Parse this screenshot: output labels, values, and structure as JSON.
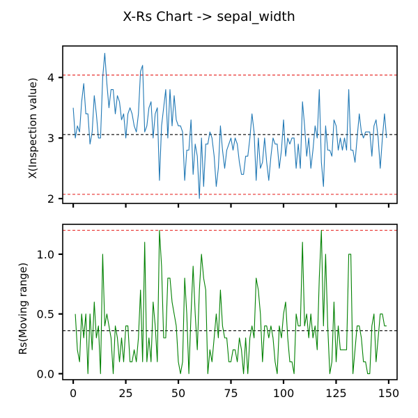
{
  "chart_data": {
    "type": "line",
    "title": "X-Rs Chart -> sepal_width",
    "colors": {
      "x_series": "#1f77b4",
      "rs_series": "#008000",
      "control_limit": "#e8312f",
      "center_line": "#000000"
    },
    "panels": [
      {
        "name": "x",
        "ylabel": "X(Inspection value)",
        "ylim": [
          1.92,
          4.52
        ],
        "yticks": [
          2,
          3,
          4
        ],
        "ucl": 4.04,
        "cl": 3.057,
        "lcl": 2.07,
        "show_x_tick_labels": false,
        "values": [
          3.5,
          3.0,
          3.2,
          3.1,
          3.6,
          3.9,
          3.4,
          3.4,
          2.9,
          3.1,
          3.7,
          3.4,
          3.0,
          3.0,
          4.0,
          4.4,
          3.9,
          3.5,
          3.8,
          3.8,
          3.4,
          3.7,
          3.6,
          3.3,
          3.4,
          3.0,
          3.4,
          3.5,
          3.4,
          3.2,
          3.1,
          3.4,
          4.1,
          4.2,
          3.1,
          3.2,
          3.5,
          3.6,
          3.0,
          3.4,
          3.5,
          2.3,
          3.2,
          3.5,
          3.8,
          3.0,
          3.8,
          3.2,
          3.7,
          3.3,
          3.2,
          3.2,
          3.1,
          2.3,
          2.8,
          2.8,
          3.3,
          2.4,
          2.9,
          2.7,
          2.0,
          3.0,
          2.2,
          2.9,
          2.9,
          3.1,
          3.0,
          2.7,
          2.2,
          2.5,
          3.2,
          2.8,
          2.5,
          2.8,
          2.9,
          3.0,
          2.8,
          3.0,
          2.9,
          2.6,
          2.4,
          2.4,
          2.7,
          2.7,
          3.0,
          3.4,
          3.1,
          2.3,
          3.0,
          2.5,
          2.6,
          3.0,
          2.6,
          2.3,
          2.7,
          3.0,
          2.9,
          2.9,
          2.5,
          2.8,
          3.3,
          2.7,
          3.0,
          2.9,
          3.0,
          3.0,
          2.5,
          2.9,
          2.5,
          3.6,
          3.2,
          2.7,
          3.0,
          2.5,
          2.8,
          3.2,
          3.0,
          3.8,
          2.6,
          2.2,
          3.2,
          2.8,
          2.8,
          2.7,
          3.3,
          3.2,
          2.8,
          3.0,
          2.8,
          3.0,
          2.8,
          3.8,
          2.8,
          2.8,
          2.6,
          3.0,
          3.4,
          3.1,
          3.0,
          3.1,
          3.1,
          3.1,
          2.7,
          3.2,
          3.3,
          3.0,
          2.5,
          3.0,
          3.4,
          3.0
        ]
      },
      {
        "name": "rs",
        "ylabel": "Rs(Moving range)",
        "ylim": [
          -0.05,
          1.25
        ],
        "yticks": [
          0.0,
          0.5,
          1.0
        ],
        "ytick_labels": [
          "0.0",
          "0.5",
          "1.0"
        ],
        "ucl": 1.2,
        "cl": 0.36,
        "x_offset": 1,
        "xlim": [
          -5,
          154
        ],
        "xticks": [
          0,
          25,
          50,
          75,
          100,
          125,
          150
        ],
        "values": [
          0.5,
          0.2,
          0.1,
          0.5,
          0.3,
          0.5,
          0.0,
          0.5,
          0.2,
          0.6,
          0.3,
          0.4,
          0.0,
          1.0,
          0.4,
          0.5,
          0.4,
          0.3,
          0.0,
          0.4,
          0.3,
          0.1,
          0.3,
          0.1,
          0.4,
          0.4,
          0.1,
          0.1,
          0.2,
          0.1,
          0.3,
          0.7,
          0.1,
          1.1,
          0.1,
          0.3,
          0.1,
          0.6,
          0.4,
          0.1,
          1.2,
          0.9,
          0.3,
          0.3,
          0.8,
          0.8,
          0.6,
          0.5,
          0.4,
          0.1,
          0.0,
          0.1,
          0.8,
          0.5,
          0.0,
          0.5,
          0.9,
          0.5,
          0.2,
          0.7,
          1.0,
          0.8,
          0.7,
          0.0,
          0.2,
          0.1,
          0.3,
          0.5,
          0.3,
          0.7,
          0.4,
          0.3,
          0.3,
          0.1,
          0.1,
          0.2,
          0.2,
          0.1,
          0.3,
          0.2,
          0.0,
          0.3,
          0.0,
          0.3,
          0.4,
          0.3,
          0.8,
          0.7,
          0.5,
          0.1,
          0.4,
          0.4,
          0.3,
          0.4,
          0.3,
          0.1,
          0.0,
          0.4,
          0.3,
          0.5,
          0.6,
          0.3,
          0.1,
          0.1,
          0.0,
          0.5,
          0.4,
          0.4,
          1.1,
          0.4,
          0.5,
          0.3,
          0.5,
          0.3,
          0.4,
          0.2,
          0.8,
          1.2,
          0.4,
          1.0,
          0.4,
          0.0,
          0.1,
          0.6,
          0.1,
          0.4,
          0.2,
          0.2,
          0.2,
          0.2,
          1.0,
          1.0,
          0.0,
          0.2,
          0.4,
          0.4,
          0.3,
          0.1,
          0.1,
          0.0,
          0.0,
          0.4,
          0.5,
          0.1,
          0.3,
          0.5,
          0.5,
          0.4,
          0.4
        ]
      }
    ]
  }
}
